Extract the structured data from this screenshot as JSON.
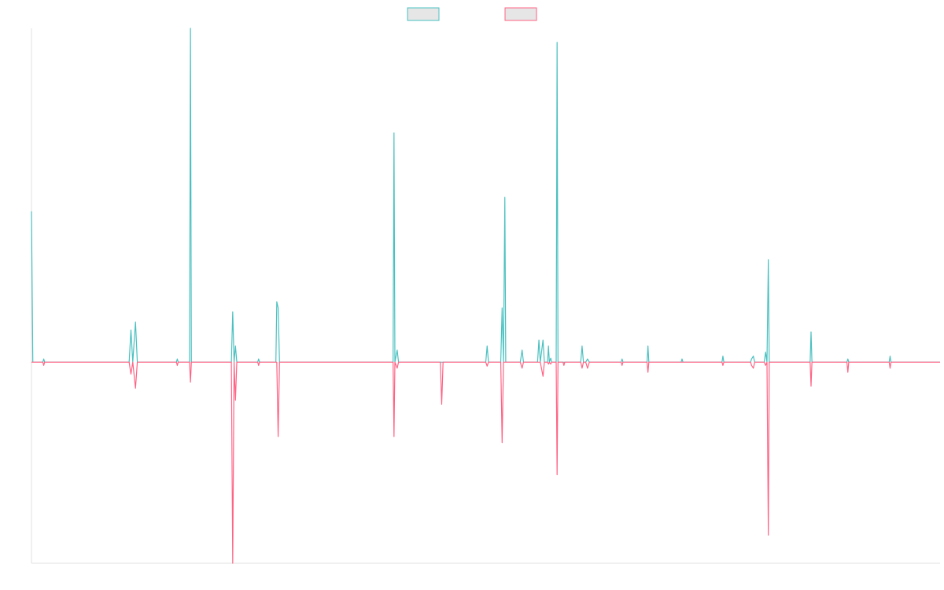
{
  "chart_data": {
    "type": "line",
    "title": "",
    "xlabel": "",
    "ylabel": "",
    "x_range": [
      0,
      200
    ],
    "ylim": [
      -100,
      166
    ],
    "grid": false,
    "legend_placement": "top-center",
    "baseline": 0,
    "series": [
      {
        "color": "#4bc0c0",
        "legend_fill": "#e6e6e6",
        "points": [
          [
            0,
            75
          ],
          [
            0.3,
            0
          ],
          [
            2.5,
            0
          ],
          [
            2.7,
            1.6
          ],
          [
            2.9,
            0
          ],
          [
            21.5,
            0
          ],
          [
            21.9,
            16
          ],
          [
            22.3,
            0
          ],
          [
            22.9,
            20
          ],
          [
            23.3,
            0
          ],
          [
            31.9,
            0
          ],
          [
            32.1,
            1.6
          ],
          [
            32.3,
            0
          ],
          [
            34.8,
            0
          ],
          [
            35.0,
            166
          ],
          [
            35.2,
            0
          ],
          [
            44.0,
            0
          ],
          [
            44.3,
            25
          ],
          [
            44.6,
            0
          ],
          [
            44.9,
            8
          ],
          [
            45.2,
            0
          ],
          [
            49.8,
            0
          ],
          [
            50.0,
            1.6
          ],
          [
            50.2,
            0
          ],
          [
            53.8,
            0
          ],
          [
            54.0,
            30
          ],
          [
            54.3,
            27
          ],
          [
            54.6,
            0
          ],
          [
            79.6,
            0
          ],
          [
            79.8,
            114
          ],
          [
            80.0,
            0
          ],
          [
            80.5,
            6
          ],
          [
            80.8,
            0
          ],
          [
            100.0,
            0
          ],
          [
            100.3,
            8
          ],
          [
            100.6,
            0
          ],
          [
            103.3,
            0
          ],
          [
            103.6,
            27
          ],
          [
            103.9,
            0
          ],
          [
            104.2,
            82
          ],
          [
            104.4,
            0
          ],
          [
            107.6,
            0
          ],
          [
            108.0,
            6
          ],
          [
            108.3,
            0
          ],
          [
            111.4,
            0
          ],
          [
            111.7,
            11
          ],
          [
            112.0,
            0
          ],
          [
            112.6,
            11
          ],
          [
            112.9,
            0
          ],
          [
            113.6,
            0
          ],
          [
            113.8,
            8
          ],
          [
            114.0,
            0
          ],
          [
            114.3,
            2
          ],
          [
            114.5,
            0
          ],
          [
            115.5,
            0
          ],
          [
            115.7,
            159
          ],
          [
            115.9,
            0
          ],
          [
            120.9,
            0
          ],
          [
            121.2,
            8
          ],
          [
            121.5,
            0
          ],
          [
            122.0,
            0
          ],
          [
            122.4,
            1.6
          ],
          [
            122.8,
            0
          ],
          [
            129.8,
            0
          ],
          [
            130.0,
            1.6
          ],
          [
            130.2,
            0
          ],
          [
            135.5,
            0
          ],
          [
            135.7,
            8
          ],
          [
            135.9,
            0
          ],
          [
            143.0,
            0
          ],
          [
            143.2,
            1.6
          ],
          [
            143.4,
            0
          ],
          [
            152.0,
            0
          ],
          [
            152.2,
            3
          ],
          [
            152.4,
            0
          ],
          [
            158.3,
            0
          ],
          [
            158.5,
            1.6
          ],
          [
            158.9,
            3
          ],
          [
            159.2,
            0
          ],
          [
            161.3,
            0
          ],
          [
            161.6,
            5
          ],
          [
            161.9,
            0
          ],
          [
            162.2,
            51
          ],
          [
            162.4,
            0
          ],
          [
            171.4,
            0
          ],
          [
            171.6,
            15
          ],
          [
            171.8,
            0
          ],
          [
            179.5,
            0
          ],
          [
            179.7,
            1.6
          ],
          [
            179.9,
            0
          ],
          [
            188.8,
            0
          ],
          [
            189.0,
            3
          ],
          [
            189.2,
            0
          ],
          [
            200,
            0
          ]
        ]
      },
      {
        "color": "#ff6384",
        "legend_fill": "#e6e6e6",
        "points": [
          [
            0,
            0
          ],
          [
            2.5,
            0
          ],
          [
            2.7,
            -1.6
          ],
          [
            2.9,
            0
          ],
          [
            21.5,
            0
          ],
          [
            21.9,
            -6
          ],
          [
            22.3,
            0
          ],
          [
            22.9,
            -13
          ],
          [
            23.3,
            0
          ],
          [
            31.9,
            0
          ],
          [
            32.1,
            -1.6
          ],
          [
            32.3,
            0
          ],
          [
            34.8,
            0
          ],
          [
            35.0,
            -10
          ],
          [
            35.2,
            0
          ],
          [
            44.0,
            0
          ],
          [
            44.3,
            -100
          ],
          [
            44.6,
            0
          ],
          [
            44.9,
            -19
          ],
          [
            45.2,
            0
          ],
          [
            49.8,
            0
          ],
          [
            50.0,
            -1.6
          ],
          [
            50.2,
            0
          ],
          [
            54.0,
            0
          ],
          [
            54.3,
            -37
          ],
          [
            54.6,
            0
          ],
          [
            79.6,
            0
          ],
          [
            79.8,
            -37
          ],
          [
            80.0,
            0
          ],
          [
            80.5,
            -3
          ],
          [
            80.8,
            0
          ],
          [
            90.0,
            0
          ],
          [
            90.3,
            -21
          ],
          [
            90.6,
            0
          ],
          [
            100.0,
            0
          ],
          [
            100.3,
            -2
          ],
          [
            100.6,
            0
          ],
          [
            103.3,
            0
          ],
          [
            103.6,
            -40
          ],
          [
            103.9,
            0
          ],
          [
            107.6,
            0
          ],
          [
            108.0,
            -3
          ],
          [
            108.3,
            0
          ],
          [
            112.0,
            0
          ],
          [
            112.6,
            -7
          ],
          [
            112.9,
            0
          ],
          [
            113.6,
            0
          ],
          [
            113.8,
            -1
          ],
          [
            114.0,
            0
          ],
          [
            114.3,
            -1
          ],
          [
            114.5,
            0
          ],
          [
            115.5,
            0
          ],
          [
            115.7,
            -56
          ],
          [
            115.9,
            0
          ],
          [
            117.0,
            0
          ],
          [
            117.2,
            -1.6
          ],
          [
            117.4,
            0
          ],
          [
            120.9,
            0
          ],
          [
            121.2,
            -3
          ],
          [
            121.5,
            0
          ],
          [
            122.0,
            0
          ],
          [
            122.4,
            -3
          ],
          [
            122.8,
            0
          ],
          [
            129.8,
            0
          ],
          [
            130.0,
            -1.6
          ],
          [
            130.2,
            0
          ],
          [
            135.5,
            0
          ],
          [
            135.7,
            -5
          ],
          [
            135.9,
            0
          ],
          [
            152.0,
            0
          ],
          [
            152.2,
            -1.6
          ],
          [
            152.4,
            0
          ],
          [
            158.3,
            0
          ],
          [
            158.5,
            -1.6
          ],
          [
            158.9,
            -3
          ],
          [
            159.2,
            0
          ],
          [
            161.3,
            0
          ],
          [
            161.6,
            -1.6
          ],
          [
            161.9,
            0
          ],
          [
            162.2,
            -86
          ],
          [
            162.4,
            0
          ],
          [
            171.4,
            0
          ],
          [
            171.6,
            -12
          ],
          [
            171.8,
            0
          ],
          [
            179.5,
            0
          ],
          [
            179.7,
            -5
          ],
          [
            179.9,
            0
          ],
          [
            188.8,
            0
          ],
          [
            189.0,
            -3
          ],
          [
            189.2,
            0
          ],
          [
            200,
            0
          ]
        ]
      }
    ]
  }
}
